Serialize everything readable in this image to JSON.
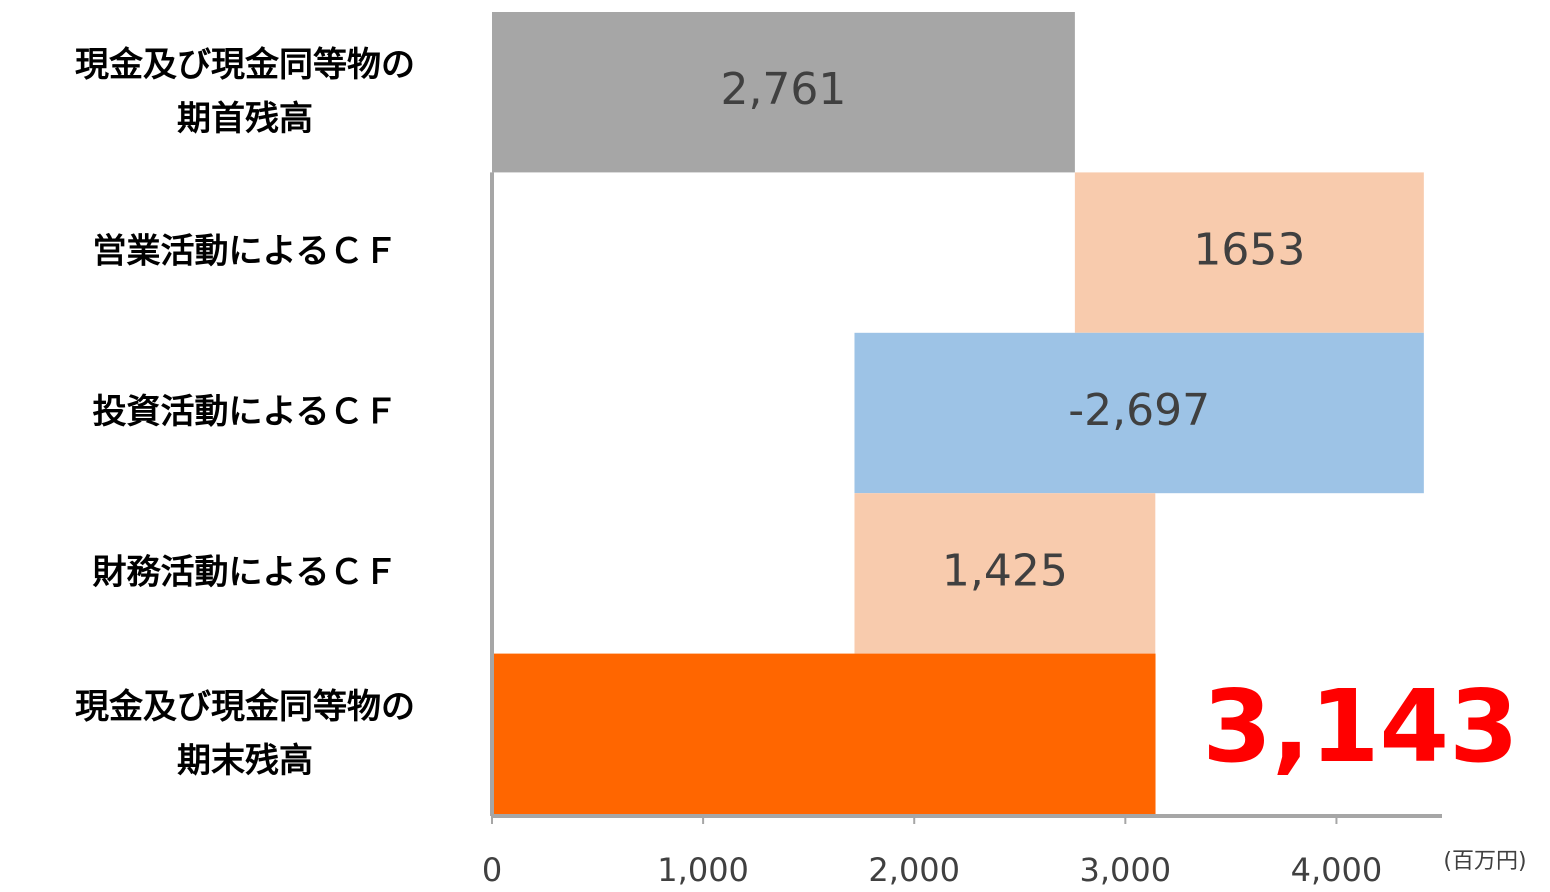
{
  "chart_data": {
    "type": "waterfall",
    "categories": [
      [
        "現金及び現金同等物の",
        "期首残高"
      ],
      [
        "営業活動によるＣＦ"
      ],
      [
        "投資活動によるＣＦ"
      ],
      [
        "財務活動によるＣＦ"
      ],
      [
        "現金及び現金同等物の",
        "期末残高"
      ]
    ],
    "values": [
      2761,
      1653,
      -2697,
      1425,
      3143
    ],
    "value_labels": [
      "2,761",
      "1653",
      "-2,697",
      "1,425",
      "3,143"
    ],
    "totals": [
      true,
      false,
      false,
      false,
      true
    ],
    "colors": [
      "#a6a6a6",
      "#f8cbad",
      "#9dc3e6",
      "#f8cbad",
      "#ff6600"
    ],
    "xlim": [
      0,
      4500
    ],
    "xticks": [
      0,
      {
        "value": 1000,
        "label": "1,000"
      },
      {
        "value": 2000,
        "label": "2,000"
      },
      {
        "value": 3000,
        "label": "3,000"
      },
      {
        "value": 4000,
        "label": "4,000"
      }
    ],
    "unit": "(百万円)"
  }
}
